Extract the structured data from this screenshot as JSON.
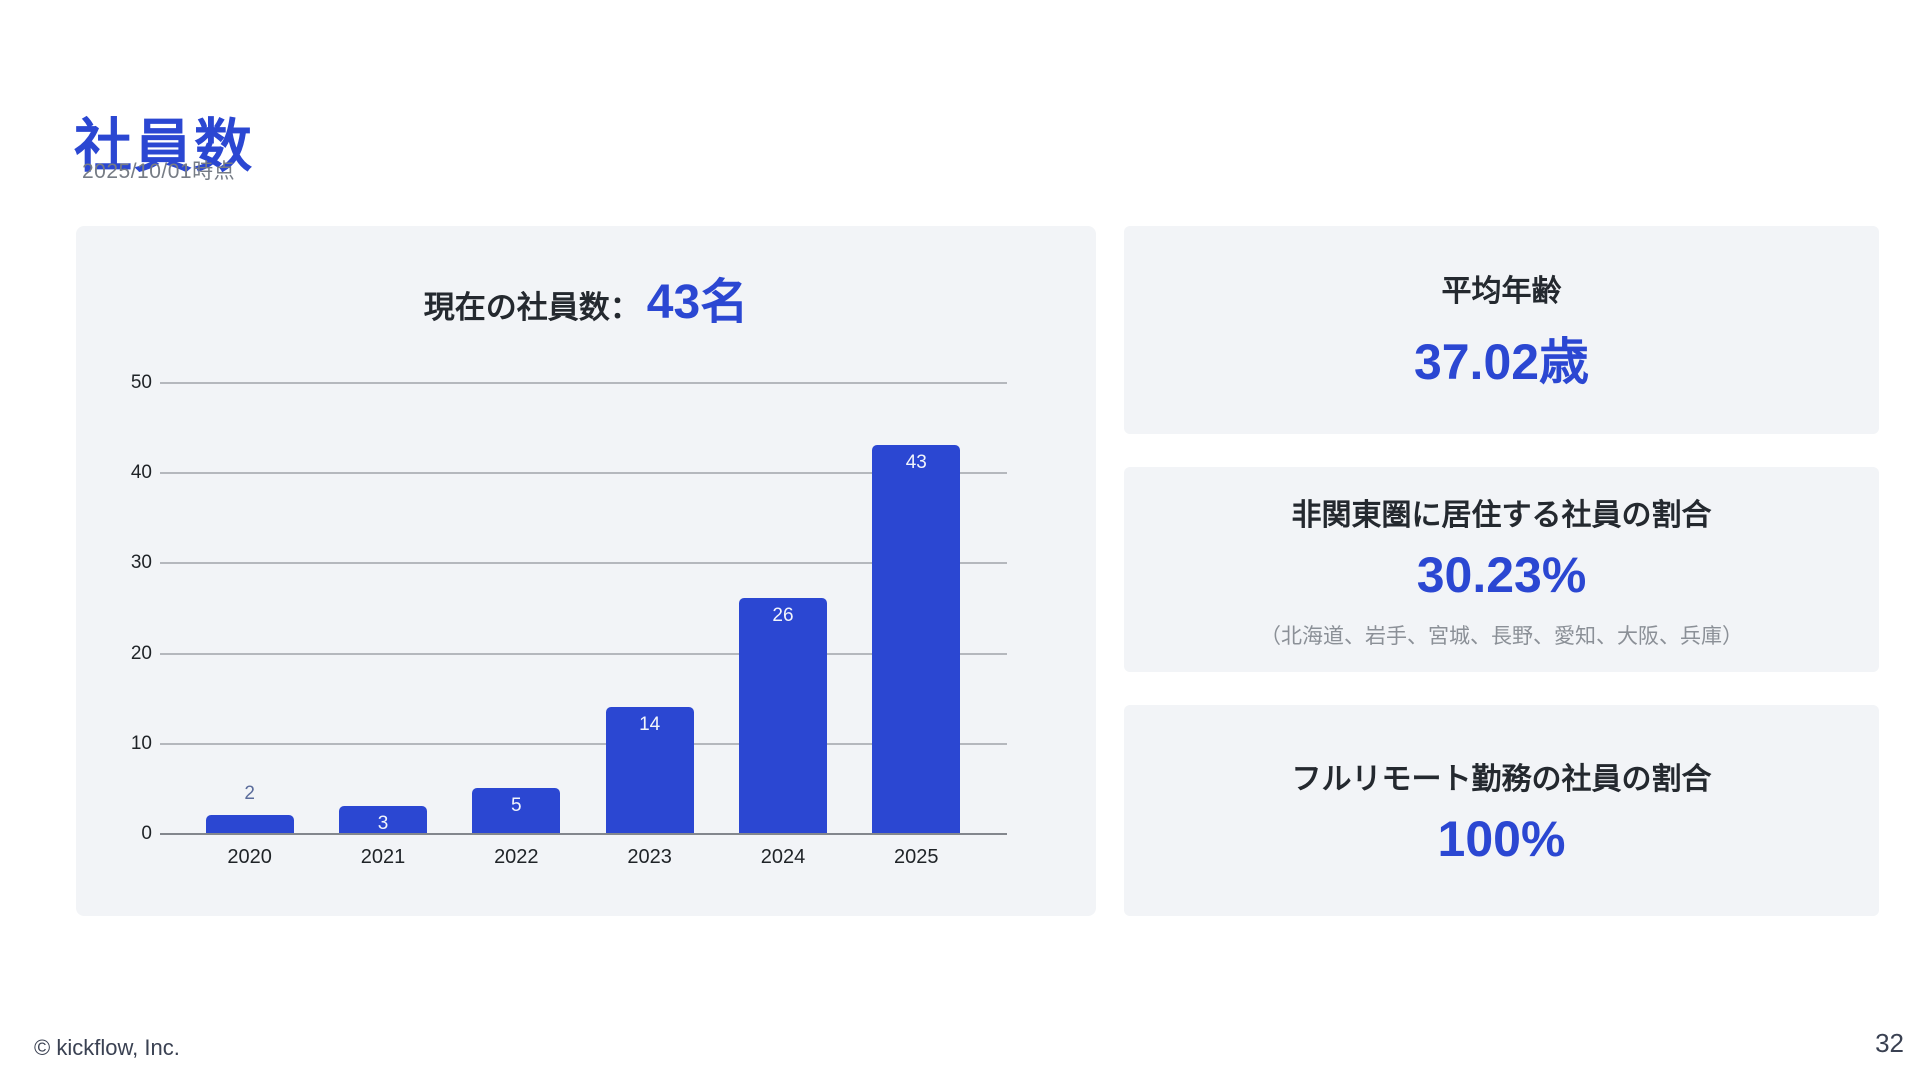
{
  "page": {
    "title": "社員数",
    "subtitle": "2025/10/01時点",
    "footer_copyright": "© kickflow, Inc.",
    "page_number": "32"
  },
  "colors": {
    "accent_blue": "#2B47D2",
    "panel_background": "#F2F4F7",
    "dark_text": "#24292F",
    "muted_text": "#767C85",
    "gridline": "#B5B8BD",
    "axis_line": "#83878D",
    "outside_bar_label": "#5B6C9B",
    "inside_bar_label": "#F2F5FB"
  },
  "chart_data": {
    "type": "bar",
    "title": "現在の社員数：43名",
    "title_prefix": "現在の社員数：",
    "title_value": "43名",
    "categories": [
      "2020",
      "2021",
      "2022",
      "2023",
      "2024",
      "2025"
    ],
    "values": [
      2,
      3,
      5,
      14,
      26,
      43
    ],
    "xlabel": "",
    "ylabel": "",
    "ylim": [
      0,
      50
    ],
    "yticks": [
      0,
      10,
      20,
      30,
      40,
      50
    ],
    "grid": true,
    "legend": "none",
    "bar_color": "#2B47D2"
  },
  "stats": [
    {
      "label": "平均年齢",
      "value": "37.02歳",
      "note": ""
    },
    {
      "label": "非関東圏に居住する社員の割合",
      "value": "30.23%",
      "note": "（北海道、岩手、宮城、長野、愛知、大阪、兵庫）"
    },
    {
      "label": "フルリモート勤務の社員の割合",
      "value": "100%",
      "note": ""
    }
  ]
}
